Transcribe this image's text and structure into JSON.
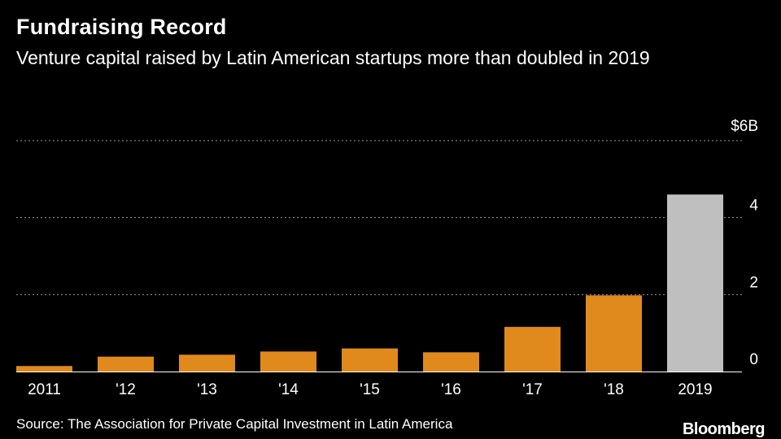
{
  "title": "Fundraising Record",
  "subtitle": "Venture capital raised by Latin American startups more than doubled in 2019",
  "source": "Source: The Association for Private Capital Investment in Latin America",
  "logo": "Bloomberg",
  "colors": {
    "bar": "#e08a1e",
    "highlight": "#bfbfbf",
    "grid": "#9a9a9a",
    "background": "#000000"
  },
  "chart_data": {
    "type": "bar",
    "title": "Fundraising Record",
    "xlabel": "",
    "ylabel": "",
    "unit": "$B",
    "categories": [
      "2011",
      "'12",
      "'13",
      "'14",
      "'15",
      "'16",
      "'17",
      "'18",
      "2019"
    ],
    "values": [
      0.143,
      0.387,
      0.437,
      0.52,
      0.6,
      0.5,
      1.16,
      1.98,
      4.6
    ],
    "highlight_index": 8,
    "ylim": [
      0,
      6
    ],
    "yticks": [
      0,
      2,
      4,
      6
    ],
    "ytick_labels": [
      "0",
      "2",
      "4",
      "$6B"
    ],
    "grid": true,
    "axis_side": "right"
  }
}
